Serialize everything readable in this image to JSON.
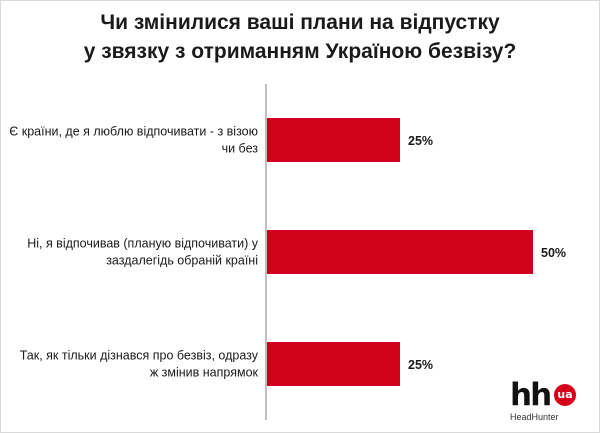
{
  "title": {
    "line1": "Чи змінилися ваші плани на відпустку",
    "line2": "у звязку з отриманням Україною безвізу?"
  },
  "colors": {
    "bar": "#d0021b",
    "axis": "#7f7f7f"
  },
  "logo": {
    "main": "hh",
    "badge": "ua",
    "subtitle": "HeadHunter"
  },
  "chart_data": {
    "type": "bar",
    "orientation": "horizontal",
    "categories": [
      [
        "Є країни, де я люблю відпочивати - з візою",
        "чи без"
      ],
      [
        "Ні, я відпочивав (планую відпочивати) у",
        "заздалегідь обраній країні"
      ],
      [
        "Так, як тільки дізнався про безвіз, одразу",
        "ж змінив напрямок"
      ]
    ],
    "values": [
      25,
      50,
      25
    ],
    "value_labels": [
      "25%",
      "50%",
      "25%"
    ],
    "xlim": [
      0,
      50
    ],
    "unit": "%",
    "grid": false,
    "legend": "none"
  }
}
